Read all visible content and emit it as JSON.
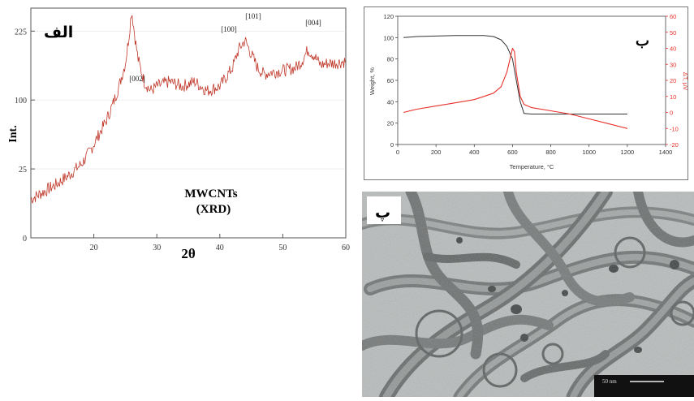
{
  "panels": {
    "xrd": {
      "label": "الف",
      "title_line1": "MWCNTs",
      "title_line2": "(XRD)"
    },
    "tga": {
      "label": "ب"
    },
    "tem": {
      "label": "پ",
      "scalebar_text": "50 nm"
    }
  },
  "chart_data": [
    {
      "type": "line",
      "panel": "xrd",
      "xlabel": "2θ",
      "ylabel": "Int.",
      "xlim": [
        10,
        60
      ],
      "ylim": [
        0,
        250
      ],
      "x_ticks": [
        20,
        30,
        40,
        50,
        60
      ],
      "y_ticks": [
        0,
        25,
        100,
        225
      ],
      "y_tick_display_positions": [
        0,
        75,
        150,
        225
      ],
      "peak_labels": [
        {
          "text": "[002]",
          "x": 26
        },
        {
          "text": "[100]",
          "x": 43
        },
        {
          "text": "[101]",
          "x": 44
        },
        {
          "text": "[004]",
          "x": 54.5
        }
      ],
      "series": [
        {
          "color": "#c0392b",
          "x": [
            10,
            12,
            14,
            16,
            18,
            19,
            20,
            21,
            22,
            23,
            24,
            25,
            25.5,
            26,
            26.5,
            27,
            28,
            29,
            30,
            32,
            34,
            36,
            38,
            40,
            41,
            42,
            43,
            44,
            45,
            46,
            47,
            48,
            50,
            52,
            53,
            54,
            55,
            56,
            57,
            58,
            60
          ],
          "y": [
            42,
            50,
            58,
            68,
            80,
            90,
            102,
            115,
            128,
            145,
            165,
            190,
            215,
            248,
            220,
            195,
            170,
            160,
            165,
            170,
            165,
            170,
            160,
            165,
            175,
            185,
            205,
            215,
            200,
            185,
            178,
            180,
            182,
            185,
            192,
            205,
            198,
            188,
            190,
            190,
            192
          ]
        }
      ]
    },
    {
      "type": "line",
      "panel": "tga",
      "xlabel": "Temperature, °C",
      "ylabel": "Weight, %",
      "y2label": "ΔT, μV",
      "xlim": [
        0,
        1400
      ],
      "ylim": [
        0,
        120
      ],
      "y2lim": [
        -20,
        60
      ],
      "x_ticks": [
        0,
        200,
        400,
        600,
        800,
        1000,
        1200,
        1400
      ],
      "y_ticks": [
        0,
        20,
        40,
        60,
        80,
        100,
        120
      ],
      "y2_ticks": [
        -20,
        -10,
        0,
        10,
        20,
        30,
        40,
        50,
        60
      ],
      "series": [
        {
          "axis": "left",
          "color": "#333333",
          "x": [
            30,
            100,
            200,
            300,
            400,
            450,
            500,
            540,
            570,
            600,
            620,
            640,
            660,
            700,
            800,
            900,
            1000,
            1100,
            1200
          ],
          "y": [
            100,
            101,
            101.5,
            102,
            102,
            102,
            101,
            98,
            92,
            80,
            60,
            40,
            29,
            28.5,
            28.5,
            28.5,
            28.5,
            28.5,
            28.5
          ]
        },
        {
          "axis": "right",
          "color": "#e8302a",
          "x": [
            30,
            100,
            200,
            300,
            400,
            450,
            500,
            540,
            570,
            590,
            600,
            610,
            620,
            640,
            660,
            700,
            800,
            900,
            1000,
            1100,
            1200
          ],
          "y": [
            0,
            2,
            4,
            6,
            8,
            10,
            12,
            16,
            25,
            35,
            40,
            38,
            25,
            10,
            5,
            3,
            1,
            -1,
            -4,
            -7,
            -10
          ]
        }
      ]
    }
  ]
}
